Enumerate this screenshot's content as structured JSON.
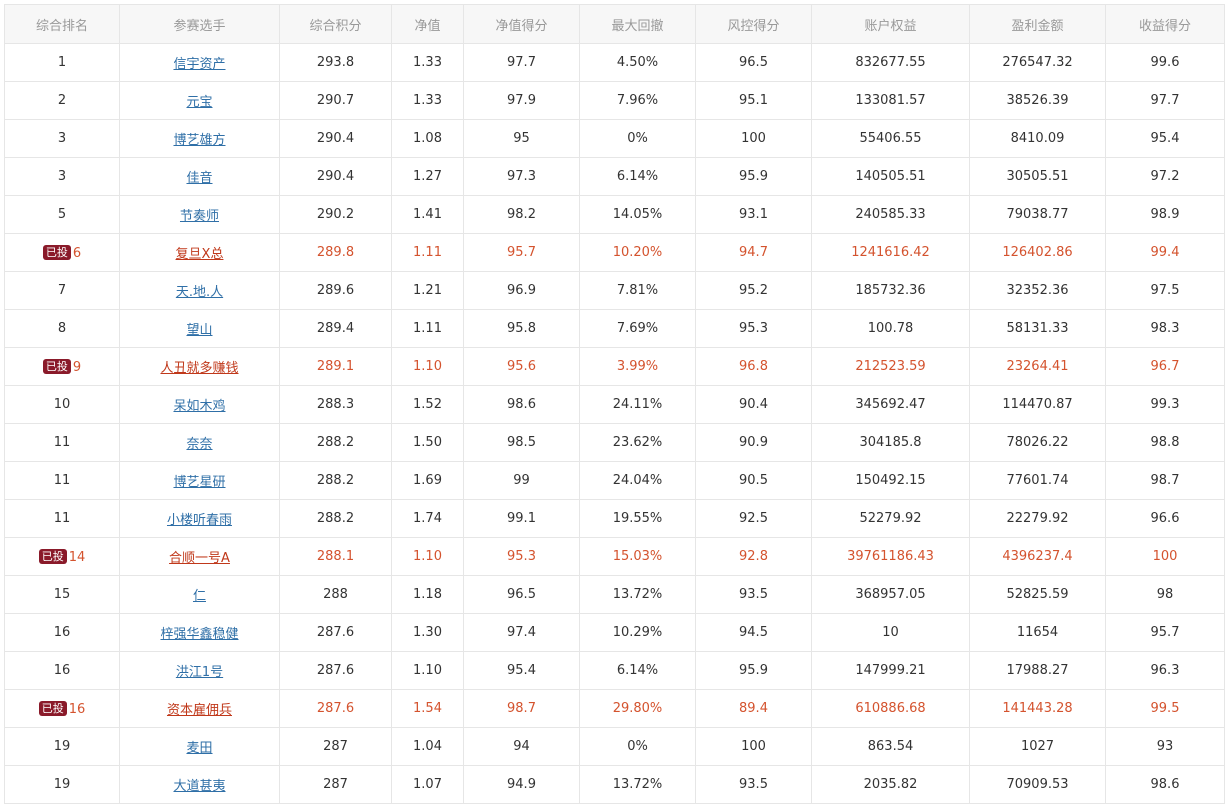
{
  "columns": [
    "综合排名",
    "参赛选手",
    "综合积分",
    "净值",
    "净值得分",
    "最大回撤",
    "风控得分",
    "账户权益",
    "盈利金额",
    "收益得分"
  ],
  "badge_label": "已投",
  "accent_colors": {
    "highlight_text": "#d4532e",
    "badge_bg": "#8a1a2a",
    "link": "#2f6fa7"
  },
  "rows": [
    {
      "rank": "1",
      "name": "信宇资产",
      "score": "293.8",
      "nav": "1.33",
      "nav_score": "97.7",
      "drawdown": "4.50%",
      "risk_score": "96.5",
      "equity": "832677.55",
      "profit": "276547.32",
      "return_score": "99.6",
      "invested": false
    },
    {
      "rank": "2",
      "name": "元宝",
      "score": "290.7",
      "nav": "1.33",
      "nav_score": "97.9",
      "drawdown": "7.96%",
      "risk_score": "95.1",
      "equity": "133081.57",
      "profit": "38526.39",
      "return_score": "97.7",
      "invested": false
    },
    {
      "rank": "3",
      "name": "博艺雄方",
      "score": "290.4",
      "nav": "1.08",
      "nav_score": "95",
      "drawdown": "0%",
      "risk_score": "100",
      "equity": "55406.55",
      "profit": "8410.09",
      "return_score": "95.4",
      "invested": false
    },
    {
      "rank": "3",
      "name": "佳音",
      "score": "290.4",
      "nav": "1.27",
      "nav_score": "97.3",
      "drawdown": "6.14%",
      "risk_score": "95.9",
      "equity": "140505.51",
      "profit": "30505.51",
      "return_score": "97.2",
      "invested": false
    },
    {
      "rank": "5",
      "name": "节奏师",
      "score": "290.2",
      "nav": "1.41",
      "nav_score": "98.2",
      "drawdown": "14.05%",
      "risk_score": "93.1",
      "equity": "240585.33",
      "profit": "79038.77",
      "return_score": "98.9",
      "invested": false
    },
    {
      "rank": "6",
      "name": "复旦X总",
      "score": "289.8",
      "nav": "1.11",
      "nav_score": "95.7",
      "drawdown": "10.20%",
      "risk_score": "94.7",
      "equity": "1241616.42",
      "profit": "126402.86",
      "return_score": "99.4",
      "invested": true
    },
    {
      "rank": "7",
      "name": "天.地.人",
      "score": "289.6",
      "nav": "1.21",
      "nav_score": "96.9",
      "drawdown": "7.81%",
      "risk_score": "95.2",
      "equity": "185732.36",
      "profit": "32352.36",
      "return_score": "97.5",
      "invested": false
    },
    {
      "rank": "8",
      "name": "望山",
      "score": "289.4",
      "nav": "1.11",
      "nav_score": "95.8",
      "drawdown": "7.69%",
      "risk_score": "95.3",
      "equity": "100.78",
      "profit": "58131.33",
      "return_score": "98.3",
      "invested": false
    },
    {
      "rank": "9",
      "name": "人丑就多赚钱",
      "score": "289.1",
      "nav": "1.10",
      "nav_score": "95.6",
      "drawdown": "3.99%",
      "risk_score": "96.8",
      "equity": "212523.59",
      "profit": "23264.41",
      "return_score": "96.7",
      "invested": true
    },
    {
      "rank": "10",
      "name": "呆如木鸡",
      "score": "288.3",
      "nav": "1.52",
      "nav_score": "98.6",
      "drawdown": "24.11%",
      "risk_score": "90.4",
      "equity": "345692.47",
      "profit": "114470.87",
      "return_score": "99.3",
      "invested": false
    },
    {
      "rank": "11",
      "name": "奈奈",
      "score": "288.2",
      "nav": "1.50",
      "nav_score": "98.5",
      "drawdown": "23.62%",
      "risk_score": "90.9",
      "equity": "304185.8",
      "profit": "78026.22",
      "return_score": "98.8",
      "invested": false
    },
    {
      "rank": "11",
      "name": "博艺星研",
      "score": "288.2",
      "nav": "1.69",
      "nav_score": "99",
      "drawdown": "24.04%",
      "risk_score": "90.5",
      "equity": "150492.15",
      "profit": "77601.74",
      "return_score": "98.7",
      "invested": false
    },
    {
      "rank": "11",
      "name": "小楼听春雨",
      "score": "288.2",
      "nav": "1.74",
      "nav_score": "99.1",
      "drawdown": "19.55%",
      "risk_score": "92.5",
      "equity": "52279.92",
      "profit": "22279.92",
      "return_score": "96.6",
      "invested": false
    },
    {
      "rank": "14",
      "name": "合顺一号A",
      "score": "288.1",
      "nav": "1.10",
      "nav_score": "95.3",
      "drawdown": "15.03%",
      "risk_score": "92.8",
      "equity": "39761186.43",
      "profit": "4396237.4",
      "return_score": "100",
      "invested": true
    },
    {
      "rank": "15",
      "name": "仁",
      "score": "288",
      "nav": "1.18",
      "nav_score": "96.5",
      "drawdown": "13.72%",
      "risk_score": "93.5",
      "equity": "368957.05",
      "profit": "52825.59",
      "return_score": "98",
      "invested": false
    },
    {
      "rank": "16",
      "name": "梓强华鑫稳健",
      "score": "287.6",
      "nav": "1.30",
      "nav_score": "97.4",
      "drawdown": "10.29%",
      "risk_score": "94.5",
      "equity": "10",
      "profit": "11654",
      "return_score": "95.7",
      "invested": false
    },
    {
      "rank": "16",
      "name": "洪江1号",
      "score": "287.6",
      "nav": "1.10",
      "nav_score": "95.4",
      "drawdown": "6.14%",
      "risk_score": "95.9",
      "equity": "147999.21",
      "profit": "17988.27",
      "return_score": "96.3",
      "invested": false
    },
    {
      "rank": "16",
      "name": "资本雇佣兵",
      "score": "287.6",
      "nav": "1.54",
      "nav_score": "98.7",
      "drawdown": "29.80%",
      "risk_score": "89.4",
      "equity": "610886.68",
      "profit": "141443.28",
      "return_score": "99.5",
      "invested": true
    },
    {
      "rank": "19",
      "name": "麦田",
      "score": "287",
      "nav": "1.04",
      "nav_score": "94",
      "drawdown": "0%",
      "risk_score": "100",
      "equity": "863.54",
      "profit": "1027",
      "return_score": "93",
      "invested": false
    },
    {
      "rank": "19",
      "name": "大道甚夷",
      "score": "287",
      "nav": "1.07",
      "nav_score": "94.9",
      "drawdown": "13.72%",
      "risk_score": "93.5",
      "equity": "2035.82",
      "profit": "70909.53",
      "return_score": "98.6",
      "invested": false
    }
  ]
}
